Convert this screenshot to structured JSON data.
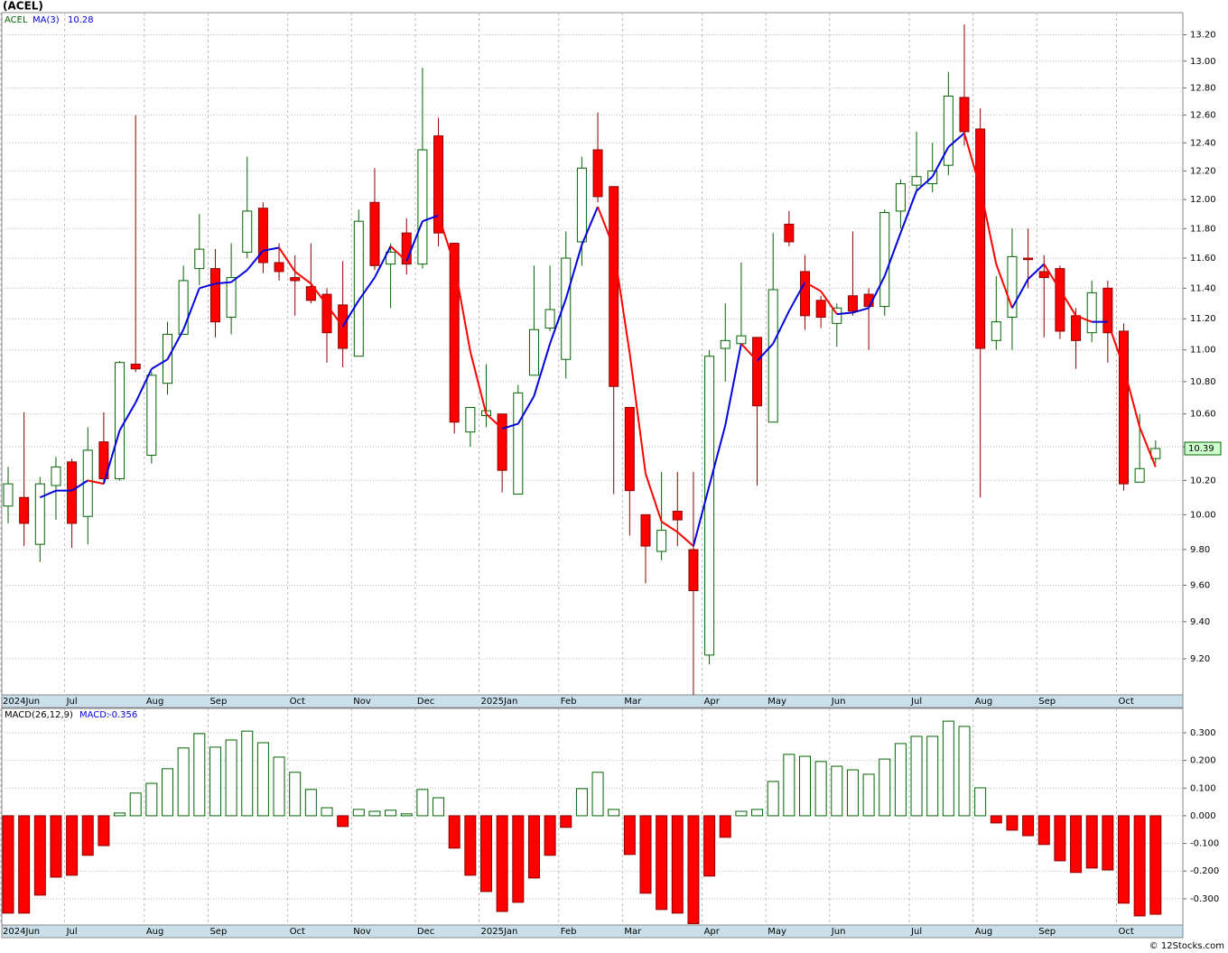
{
  "title": "(ACEL)",
  "footer": "© 12Stocks.com",
  "chart_data": [
    {
      "type": "candlestick",
      "symbol": "ACEL",
      "log_scale": true,
      "grid": true,
      "categories": [
        "2024Jun",
        null,
        null,
        null,
        "Jul",
        null,
        null,
        null,
        null,
        "Aug",
        null,
        null,
        null,
        "Sep",
        null,
        null,
        null,
        null,
        "Oct",
        null,
        null,
        null,
        "Nov",
        null,
        null,
        null,
        "Dec",
        null,
        null,
        null,
        "2025Jan",
        null,
        null,
        null,
        null,
        "Feb",
        null,
        null,
        null,
        "Mar",
        null,
        null,
        null,
        null,
        "Apr",
        null,
        null,
        null,
        "May",
        null,
        null,
        null,
        "Jun",
        null,
        null,
        null,
        null,
        "Jul",
        null,
        null,
        null,
        "Aug",
        null,
        null,
        null,
        "Sep",
        null,
        null,
        null,
        null,
        "Oct",
        null,
        null
      ],
      "open": [
        10.05,
        10.1,
        9.83,
        10.17,
        10.31,
        9.99,
        10.43,
        10.21,
        10.91,
        10.35,
        10.79,
        11.1,
        11.53,
        11.53,
        11.21,
        11.64,
        11.94,
        11.57,
        11.47,
        11.41,
        11.36,
        11.29,
        10.96,
        11.98,
        11.56,
        11.77,
        11.56,
        12.45,
        11.7,
        10.49,
        10.59,
        10.6,
        10.12,
        10.84,
        11.14,
        10.94,
        11.71,
        12.35,
        12.09,
        10.64,
        10.0,
        9.79,
        10.02,
        9.8,
        9.22,
        11.01,
        11.04,
        11.08,
        10.55,
        11.83,
        11.51,
        11.32,
        11.17,
        11.35,
        11.36,
        11.28,
        11.92,
        12.1,
        12.11,
        12.24,
        12.73,
        12.5,
        11.06,
        11.21,
        11.6,
        11.51,
        11.53,
        11.22,
        11.11,
        11.4,
        11.12,
        10.19,
        10.33
      ],
      "high": [
        10.28,
        10.61,
        10.22,
        10.34,
        10.33,
        10.52,
        10.61,
        10.93,
        12.6,
        10.86,
        11.18,
        11.55,
        11.9,
        11.66,
        11.7,
        12.3,
        11.98,
        11.7,
        11.62,
        11.7,
        11.4,
        11.58,
        11.93,
        12.22,
        11.7,
        11.87,
        12.95,
        12.58,
        11.7,
        10.64,
        10.91,
        10.6,
        10.78,
        11.55,
        11.55,
        11.78,
        12.3,
        12.62,
        12.09,
        10.64,
        10.0,
        10.25,
        10.25,
        10.25,
        11.0,
        11.3,
        11.57,
        11.08,
        11.77,
        11.92,
        11.62,
        11.35,
        11.3,
        11.78,
        11.4,
        11.93,
        12.14,
        12.48,
        12.4,
        12.92,
        13.28,
        12.65,
        11.48,
        11.8,
        11.8,
        11.62,
        11.55,
        11.27,
        11.45,
        11.45,
        11.17,
        10.6,
        10.44
      ],
      "low": [
        9.95,
        9.82,
        9.73,
        9.97,
        9.81,
        9.83,
        10.19,
        10.2,
        10.86,
        10.3,
        10.72,
        11.1,
        11.42,
        11.08,
        11.1,
        11.6,
        11.5,
        11.45,
        11.22,
        11.3,
        10.92,
        10.89,
        10.96,
        11.52,
        11.27,
        11.49,
        11.53,
        11.68,
        10.48,
        10.4,
        10.52,
        10.13,
        10.12,
        10.84,
        11.12,
        10.82,
        11.55,
        11.98,
        10.12,
        9.88,
        9.61,
        9.74,
        9.82,
        9.01,
        9.17,
        10.8,
        11.04,
        10.17,
        10.55,
        11.68,
        11.13,
        11.14,
        11.02,
        11.22,
        11.0,
        11.22,
        11.8,
        12.05,
        12.05,
        12.17,
        12.38,
        10.1,
        11.0,
        11.0,
        11.4,
        11.08,
        11.07,
        10.88,
        11.05,
        10.92,
        10.14,
        10.19,
        10.3
      ],
      "close": [
        10.18,
        9.95,
        10.18,
        10.28,
        9.95,
        10.38,
        10.21,
        10.92,
        10.88,
        10.84,
        11.1,
        11.45,
        11.66,
        11.18,
        11.47,
        11.92,
        11.57,
        11.51,
        11.45,
        11.32,
        11.11,
        11.01,
        11.85,
        11.55,
        11.64,
        11.56,
        12.35,
        11.77,
        10.55,
        10.64,
        10.62,
        10.26,
        10.73,
        11.13,
        11.26,
        11.6,
        12.22,
        12.02,
        10.77,
        10.14,
        9.82,
        9.91,
        9.97,
        9.57,
        10.96,
        11.06,
        11.09,
        10.65,
        11.39,
        11.71,
        11.22,
        11.21,
        11.27,
        11.25,
        11.28,
        11.91,
        12.11,
        12.16,
        12.2,
        12.74,
        12.48,
        11.01,
        11.18,
        11.61,
        11.59,
        11.47,
        11.12,
        11.06,
        11.37,
        11.11,
        10.18,
        10.27,
        10.39
      ],
      "up_color": "#006400",
      "down_color": "#ff0000",
      "ma": {
        "name": "MA(3)",
        "up_color": "#0000dd",
        "down_color": "#ff0000",
        "values": [
          null,
          null,
          10.1,
          10.14,
          10.14,
          10.2,
          10.18,
          10.5,
          10.67,
          10.88,
          10.94,
          11.13,
          11.4,
          11.43,
          11.44,
          11.52,
          11.65,
          11.67,
          11.51,
          11.43,
          11.29,
          11.15,
          11.32,
          11.47,
          11.68,
          11.58,
          11.85,
          11.89,
          11.56,
          10.99,
          10.6,
          10.51,
          10.54,
          10.71,
          11.04,
          11.33,
          11.69,
          11.95,
          11.67,
          10.98,
          10.24,
          9.96,
          9.9,
          9.82,
          10.17,
          10.53,
          11.04,
          10.93,
          11.04,
          11.25,
          11.44,
          11.38,
          11.23,
          11.24,
          11.27,
          11.48,
          11.77,
          12.06,
          12.16,
          12.37,
          12.47,
          12.08,
          11.56,
          11.27,
          11.46,
          11.56,
          11.39,
          11.22,
          11.18,
          11.18,
          10.89,
          10.52,
          10.28
        ]
      },
      "ylim": [
        9.01,
        13.37
      ],
      "yticks": [
        {
          "value": 9.2,
          "label": "9.20"
        },
        {
          "value": 9.4,
          "label": "9.40"
        },
        {
          "value": 9.6,
          "label": "9.60"
        },
        {
          "value": 9.8,
          "label": "9.80"
        },
        {
          "value": 10.0,
          "label": "10.00"
        },
        {
          "value": 10.2,
          "label": "10.20"
        },
        {
          "value": 10.4,
          "label": "10.40"
        },
        {
          "value": 10.6,
          "label": "10.60"
        },
        {
          "value": 10.8,
          "label": "10.80"
        },
        {
          "value": 11.0,
          "label": "11.00"
        },
        {
          "value": 11.2,
          "label": "11.20"
        },
        {
          "value": 11.4,
          "label": "11.40"
        },
        {
          "value": 11.6,
          "label": "11.60"
        },
        {
          "value": 11.8,
          "label": "11.80"
        },
        {
          "value": 12.0,
          "label": "12.00"
        },
        {
          "value": 12.2,
          "label": "12.20"
        },
        {
          "value": 12.4,
          "label": "12.40"
        },
        {
          "value": 12.6,
          "label": "12.60"
        },
        {
          "value": 12.8,
          "label": "12.80"
        },
        {
          "value": 13.0,
          "label": "13.00"
        },
        {
          "value": 13.2,
          "label": "13.20"
        }
      ]
    },
    {
      "type": "bar",
      "name": "MACD(26,12,9)",
      "value_name": "MACD:",
      "grid": true,
      "pos_color": "#006400",
      "neg_color": "#ff0000",
      "values": [
        -0.352,
        -0.352,
        -0.287,
        -0.222,
        -0.215,
        -0.143,
        -0.108,
        0.01,
        0.082,
        0.117,
        0.17,
        0.245,
        0.297,
        0.248,
        0.274,
        0.306,
        0.264,
        0.212,
        0.157,
        0.095,
        0.029,
        -0.039,
        0.023,
        0.016,
        0.02,
        0.007,
        0.095,
        0.065,
        -0.117,
        -0.215,
        -0.274,
        -0.346,
        -0.313,
        -0.225,
        -0.143,
        -0.042,
        0.098,
        0.157,
        0.023,
        -0.14,
        -0.28,
        -0.339,
        -0.352,
        -0.39,
        -0.218,
        -0.078,
        0.016,
        0.023,
        0.124,
        0.222,
        0.215,
        0.196,
        0.179,
        0.166,
        0.15,
        0.205,
        0.261,
        0.287,
        0.287,
        0.342,
        0.323,
        0.101,
        -0.026,
        -0.052,
        -0.072,
        -0.104,
        -0.163,
        -0.205,
        -0.189,
        -0.196,
        -0.316,
        -0.362,
        -0.356
      ],
      "ylim": [
        -0.395,
        0.388
      ],
      "yticks": [
        {
          "value": -0.3,
          "label": "-0.300"
        },
        {
          "value": -0.2,
          "label": "-0.200"
        },
        {
          "value": -0.1,
          "label": "-0.100"
        },
        {
          "value": 0,
          "label": "0.000"
        },
        {
          "value": 0.1,
          "label": "0.100"
        },
        {
          "value": 0.2,
          "label": "0.200"
        },
        {
          "value": 0.3,
          "label": "0.300"
        }
      ]
    }
  ]
}
